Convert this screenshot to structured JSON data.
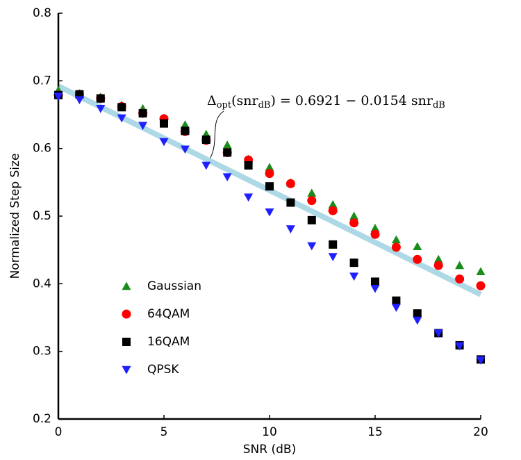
{
  "chart_data": {
    "type": "scatter",
    "xlabel": "SNR (dB)",
    "ylabel": "Normalized Step Size",
    "x": [
      0,
      1,
      2,
      3,
      4,
      5,
      6,
      7,
      8,
      9,
      10,
      11,
      12,
      13,
      14,
      15,
      16,
      17,
      18,
      19,
      20
    ],
    "xlim": [
      0,
      20
    ],
    "xticks": [
      0,
      5,
      10,
      15,
      20
    ],
    "ylim": [
      0.2,
      0.8
    ],
    "yticks": [
      0.2,
      0.3,
      0.4,
      0.5,
      0.6,
      0.7,
      0.8
    ],
    "legend": "lower left",
    "series": [
      {
        "name": "Gaussian",
        "color": "#1a8c1a",
        "marker": "triangle-up",
        "values": [
          0.686,
          0.681,
          0.676,
          0.664,
          0.659,
          0.645,
          0.635,
          0.621,
          0.605,
          0.584,
          0.572,
          0.549,
          0.534,
          0.517,
          0.5,
          0.482,
          0.465,
          0.455,
          0.436,
          0.427,
          0.418
        ]
      },
      {
        "name": "64QAM",
        "color": "#ff0000",
        "marker": "circle",
        "values": [
          0.679,
          0.68,
          0.674,
          0.662,
          0.652,
          0.644,
          0.625,
          0.612,
          0.594,
          0.583,
          0.563,
          0.548,
          0.523,
          0.508,
          0.49,
          0.473,
          0.454,
          0.436,
          0.427,
          0.407,
          0.397
        ]
      },
      {
        "name": "16QAM",
        "color": "#000000",
        "marker": "square",
        "values": [
          0.679,
          0.68,
          0.674,
          0.661,
          0.652,
          0.637,
          0.626,
          0.613,
          0.594,
          0.575,
          0.544,
          0.52,
          0.494,
          0.458,
          0.431,
          0.403,
          0.375,
          0.356,
          0.327,
          0.309,
          0.288
        ]
      },
      {
        "name": "QPSK",
        "color": "#1f1fff",
        "marker": "triangle-down",
        "values": [
          0.677,
          0.672,
          0.659,
          0.645,
          0.634,
          0.61,
          0.599,
          0.575,
          0.558,
          0.528,
          0.506,
          0.481,
          0.456,
          0.44,
          0.411,
          0.393,
          0.365,
          0.346,
          0.327,
          0.308,
          0.287
        ]
      }
    ],
    "fit_line": {
      "x": [
        0,
        20
      ],
      "values": [
        0.6921,
        0.3841
      ],
      "color": "#add8e6"
    },
    "annotation": {
      "parts": [
        "Δ",
        "opt",
        "(snr",
        "dB",
        ") = 0.6921 − 0.0154 snr",
        "dB"
      ]
    }
  }
}
